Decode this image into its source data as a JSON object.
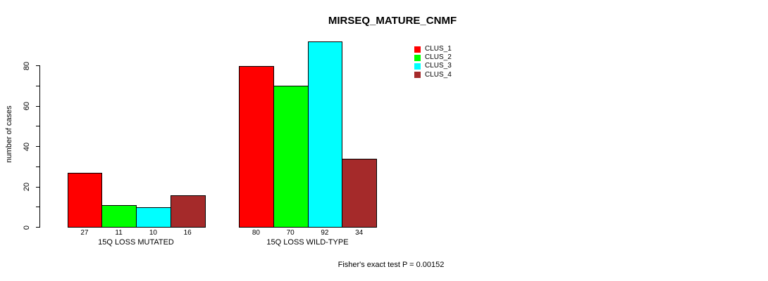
{
  "title": "MIRSEQ_MATURE_CNMF",
  "ylabel": "number of cases",
  "footer": "Fisher's exact test P = 0.00152",
  "chart_data": {
    "type": "bar",
    "categories": [
      "15Q LOSS MUTATED",
      "15Q LOSS WILD-TYPE"
    ],
    "series": [
      {
        "name": "CLUS_1",
        "color": "#FF0000",
        "values": [
          27,
          80
        ]
      },
      {
        "name": "CLUS_2",
        "color": "#00FF00",
        "values": [
          11,
          70
        ]
      },
      {
        "name": "CLUS_3",
        "color": "#00FFFF",
        "values": [
          10,
          92
        ]
      },
      {
        "name": "CLUS_4",
        "color": "#A52A2A",
        "values": [
          16,
          34
        ]
      }
    ],
    "ylim": [
      0,
      80
    ],
    "ytick_step": 10,
    "yticks_labeled": [
      0,
      20,
      40,
      60,
      80
    ],
    "grid": false,
    "legend_position": "top-right",
    "bar_border_color": "#000000",
    "background_color": "#FFFFFF"
  }
}
